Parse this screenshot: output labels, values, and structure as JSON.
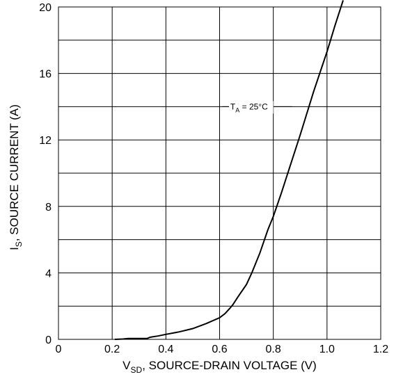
{
  "chart_data": {
    "type": "line",
    "x_title": {
      "main": "V",
      "sub": "SD",
      "rest": ", SOURCE-DRAIN VOLTAGE (V)"
    },
    "y_title": {
      "main": "I",
      "sub": "S",
      "rest": ", SOURCE CURRENT (A)"
    },
    "annotation": {
      "main": "T",
      "sub": "A",
      "rest": " = 25°C"
    },
    "xlim": [
      0,
      1.2
    ],
    "ylim": [
      0,
      20
    ],
    "x_ticks": [
      "0",
      "0.2",
      "0.4",
      "0.6",
      "0.8",
      "1.0",
      "1.2"
    ],
    "y_ticks": [
      "0",
      "4",
      "8",
      "12",
      "16",
      "20"
    ],
    "grid": true,
    "series": [
      {
        "x": [
          0.21,
          0.24,
          0.26,
          0.28,
          0.3,
          0.33,
          0.34,
          0.35,
          0.37,
          0.4,
          0.45,
          0.5,
          0.55,
          0.6,
          0.62,
          0.64,
          0.65,
          0.67,
          0.7,
          0.72,
          0.75,
          0.78,
          0.8,
          0.83,
          0.86,
          0.9,
          0.95,
          1.0,
          1.03,
          1.06
        ],
        "y": [
          0.0,
          0.02,
          0.05,
          0.05,
          0.05,
          0.05,
          0.12,
          0.15,
          0.2,
          0.3,
          0.45,
          0.65,
          0.95,
          1.3,
          1.55,
          1.9,
          2.1,
          2.6,
          3.3,
          4.0,
          5.2,
          6.6,
          7.4,
          8.8,
          10.3,
          12.3,
          14.9,
          17.3,
          18.9,
          20.4
        ]
      }
    ]
  }
}
